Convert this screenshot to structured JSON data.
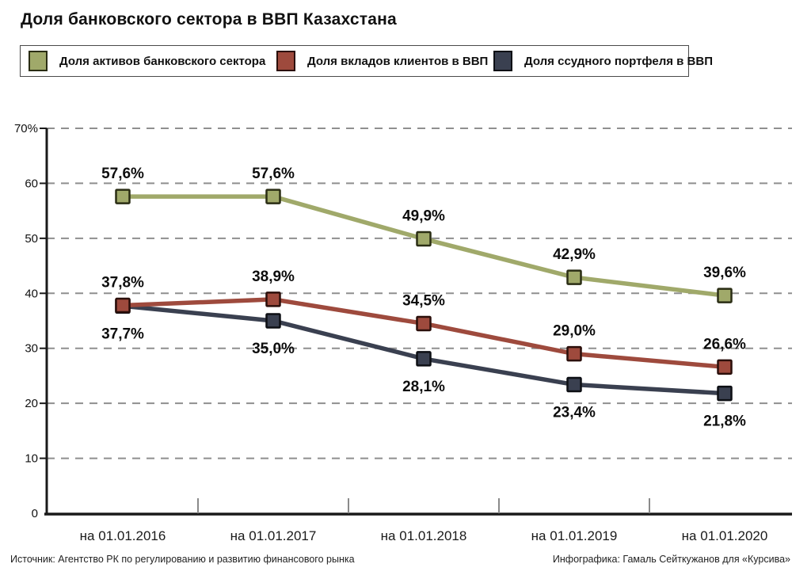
{
  "title": "Доля банковского сектора в ВВП Казахстана",
  "footer": {
    "source": "Источник: Агентство РК по регулированию и развитию финансового рынка",
    "credit": "Инфографика: Гамаль Сейткужанов для «Курсива»"
  },
  "chart_data": {
    "type": "line",
    "title": "Доля банковского сектора в ВВП Казахстана",
    "categories": [
      "на 01.01.2016",
      "на 01.01.2017",
      "на 01.01.2018",
      "на 01.01.2019",
      "на 01.01.2020"
    ],
    "series": [
      {
        "name": "Доля активов банковского сектора",
        "color": "#a0a96a",
        "border": "#2a2d14",
        "values": [
          57.6,
          57.6,
          49.9,
          42.9,
          39.6
        ],
        "labels": [
          "57,6%",
          "57,6%",
          "49,9%",
          "42,9%",
          "39,6%"
        ],
        "label_position": "above"
      },
      {
        "name": "Доля вкладов клиентов в ВВП",
        "color": "#9e4a3d",
        "border": "#2b0f0b",
        "values": [
          37.8,
          38.9,
          34.5,
          29.0,
          26.6
        ],
        "labels": [
          "37,8%",
          "38,9%",
          "34,5%",
          "29,0%",
          "26,6%"
        ],
        "label_position": "above"
      },
      {
        "name": "Доля ссудного портфеля в ВВП",
        "color": "#3a4050",
        "border": "#0d0f14",
        "values": [
          37.7,
          35.0,
          28.1,
          23.4,
          21.8
        ],
        "labels": [
          "37,7%",
          "35,0%",
          "28,1%",
          "23,4%",
          "21,8%"
        ],
        "label_position": "below"
      }
    ],
    "xlabel": "",
    "ylabel": "",
    "ylim": [
      0,
      70
    ],
    "ytick_step": 10,
    "ytick_labels": [
      "0",
      "10",
      "20",
      "30",
      "40",
      "50",
      "60",
      "70%"
    ],
    "grid": "horizontal-dashed",
    "legend_position": "top",
    "marker": "square",
    "colors": {
      "axis": "#1a1a1a",
      "gridline": "#8f8f8f",
      "text": "#111111",
      "background": "#ffffff"
    }
  }
}
